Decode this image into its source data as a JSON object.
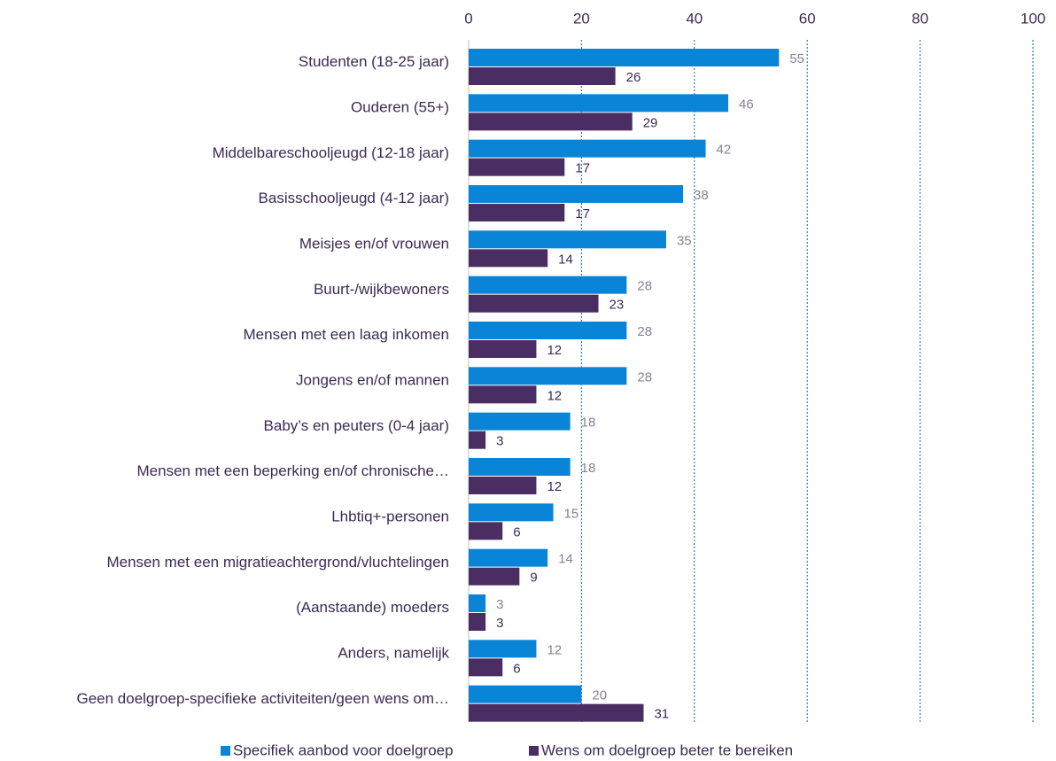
{
  "chart_data": {
    "type": "bar",
    "orientation": "horizontal",
    "categories": [
      "Studenten (18-25 jaar)",
      "Ouderen (55+)",
      "Middelbareschooljeugd (12-18 jaar)",
      "Basisschooljeugd (4-12 jaar)",
      "Meisjes en/of vrouwen",
      "Buurt-/wijkbewoners",
      "Mensen met een laag inkomen",
      "Jongens en/of mannen",
      "Baby’s en peuters (0-4 jaar)",
      "Mensen met een beperking en/of chronische…",
      "Lhbtiq+-personen",
      "Mensen met een migratieachtergrond/vluchtelingen",
      "(Aanstaande) moeders",
      "Anders, namelijk",
      "Geen doelgroep-specifieke activiteiten/geen wens om…"
    ],
    "series": [
      {
        "name": "Specifiek aanbod voor doelgroep",
        "color": "#0a84d6",
        "values": [
          55,
          46,
          42,
          38,
          35,
          28,
          28,
          28,
          18,
          18,
          15,
          14,
          3,
          12,
          20
        ]
      },
      {
        "name": "Wens om doelgroep beter te bereiken",
        "color": "#4a2d63",
        "values": [
          26,
          29,
          17,
          17,
          14,
          23,
          12,
          12,
          3,
          12,
          6,
          9,
          3,
          6,
          31
        ]
      }
    ],
    "xlim": [
      0,
      100
    ],
    "xticks": [
      0,
      20,
      40,
      60,
      80,
      100
    ],
    "grid": true,
    "legend": "bottom"
  }
}
